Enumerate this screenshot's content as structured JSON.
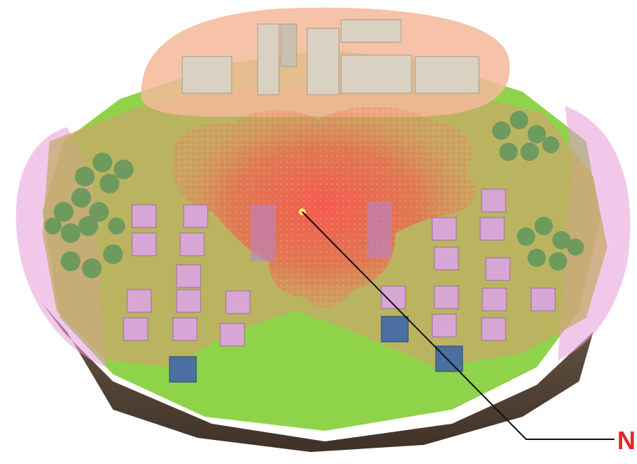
{
  "colors": {
    "ground_green": "#8fd34a",
    "soil_brown": "#5b4a3c",
    "coverage_red": "#e63a3a",
    "coverage_tan": "#c8a96a",
    "coverage_pink": "#e79ad8",
    "callout_red": "#e8242e",
    "tree_green": "#6e9a5e",
    "house_pink": "#d8a6d4",
    "house_blue": "#4a6fa0"
  },
  "callout": {
    "label": "N"
  }
}
